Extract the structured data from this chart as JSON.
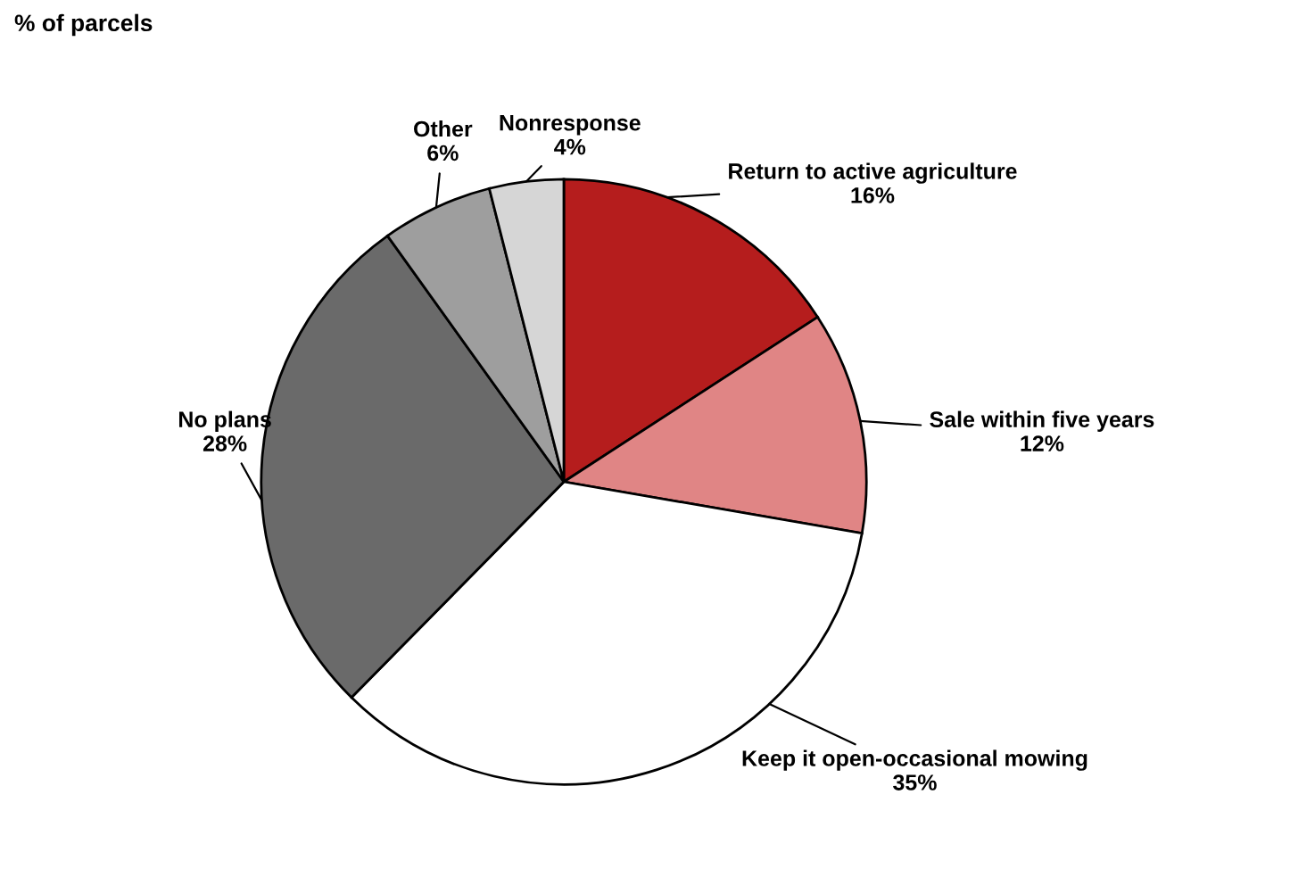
{
  "chart_data": {
    "type": "pie",
    "title": "% of parcels",
    "categories": [
      "Return to active agriculture",
      "Sale within five years",
      "Keep it open-occasional mowing",
      "No plans",
      "Other",
      "Nonresponse"
    ],
    "values": [
      16,
      12,
      35,
      28,
      6,
      4
    ],
    "value_labels": [
      "16%",
      "12%",
      "35%",
      "28%",
      "6%",
      "4%"
    ],
    "colors": [
      "#b51d1d",
      "#e08585",
      "#ffffff",
      "#6a6a6a",
      "#9e9e9e",
      "#d6d6d6"
    ]
  }
}
